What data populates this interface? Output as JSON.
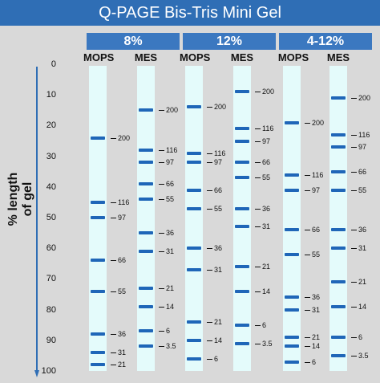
{
  "title": "Q-PAGE Bis-Tris Mini Gel",
  "y_axis": {
    "label": "% length of gel",
    "ticks": [
      "0",
      "10",
      "20",
      "30",
      "40",
      "50",
      "60",
      "70",
      "80",
      "90",
      "100"
    ]
  },
  "gels": [
    {
      "header": "8%",
      "buffers": [
        "MOPS",
        "MES"
      ]
    },
    {
      "header": "12%",
      "buffers": [
        "MOPS",
        "MES"
      ]
    },
    {
      "header": "4-12%",
      "buffers": [
        "MOPS",
        "MES"
      ]
    }
  ],
  "lanes": [
    {
      "gel": "8%",
      "buffer": "MOPS",
      "bands": [
        {
          "pos": 24,
          "mw": "200"
        },
        {
          "pos": 45,
          "mw": "116"
        },
        {
          "pos": 50,
          "mw": "97"
        },
        {
          "pos": 64,
          "mw": "66"
        },
        {
          "pos": 74,
          "mw": "55"
        },
        {
          "pos": 88,
          "mw": "36"
        },
        {
          "pos": 94,
          "mw": "31"
        },
        {
          "pos": 98,
          "mw": "21"
        }
      ]
    },
    {
      "gel": "8%",
      "buffer": "MES",
      "bands": [
        {
          "pos": 15,
          "mw": "200"
        },
        {
          "pos": 28,
          "mw": "116"
        },
        {
          "pos": 32,
          "mw": "97"
        },
        {
          "pos": 39,
          "mw": "66"
        },
        {
          "pos": 44,
          "mw": "55"
        },
        {
          "pos": 55,
          "mw": "36"
        },
        {
          "pos": 61,
          "mw": "31"
        },
        {
          "pos": 73,
          "mw": "21"
        },
        {
          "pos": 79,
          "mw": "14"
        },
        {
          "pos": 87,
          "mw": "6"
        },
        {
          "pos": 92,
          "mw": "3.5"
        }
      ]
    },
    {
      "gel": "12%",
      "buffer": "MOPS",
      "bands": [
        {
          "pos": 14,
          "mw": "200"
        },
        {
          "pos": 29,
          "mw": "116"
        },
        {
          "pos": 32,
          "mw": "97"
        },
        {
          "pos": 41,
          "mw": "66"
        },
        {
          "pos": 47,
          "mw": "55"
        },
        {
          "pos": 60,
          "mw": "36"
        },
        {
          "pos": 67,
          "mw": "31"
        },
        {
          "pos": 84,
          "mw": "21"
        },
        {
          "pos": 90,
          "mw": "14"
        },
        {
          "pos": 96,
          "mw": "6"
        }
      ]
    },
    {
      "gel": "12%",
      "buffer": "MES",
      "bands": [
        {
          "pos": 9,
          "mw": "200"
        },
        {
          "pos": 21,
          "mw": "116"
        },
        {
          "pos": 25,
          "mw": "97"
        },
        {
          "pos": 32,
          "mw": "66"
        },
        {
          "pos": 37,
          "mw": "55"
        },
        {
          "pos": 47,
          "mw": "36"
        },
        {
          "pos": 53,
          "mw": "31"
        },
        {
          "pos": 66,
          "mw": "21"
        },
        {
          "pos": 74,
          "mw": "14"
        },
        {
          "pos": 85,
          "mw": "6"
        },
        {
          "pos": 91,
          "mw": "3.5"
        }
      ]
    },
    {
      "gel": "4-12%",
      "buffer": "MOPS",
      "bands": [
        {
          "pos": 19,
          "mw": "200"
        },
        {
          "pos": 36,
          "mw": "116"
        },
        {
          "pos": 41,
          "mw": "97"
        },
        {
          "pos": 54,
          "mw": "66"
        },
        {
          "pos": 62,
          "mw": "55"
        },
        {
          "pos": 76,
          "mw": "36"
        },
        {
          "pos": 80,
          "mw": "31"
        },
        {
          "pos": 89,
          "mw": "21"
        },
        {
          "pos": 92,
          "mw": "14"
        },
        {
          "pos": 97,
          "mw": "6"
        }
      ]
    },
    {
      "gel": "4-12%",
      "buffer": "MES",
      "bands": [
        {
          "pos": 11,
          "mw": "200"
        },
        {
          "pos": 23,
          "mw": "116"
        },
        {
          "pos": 27,
          "mw": "97"
        },
        {
          "pos": 35,
          "mw": "66"
        },
        {
          "pos": 41,
          "mw": "55"
        },
        {
          "pos": 54,
          "mw": "36"
        },
        {
          "pos": 60,
          "mw": "31"
        },
        {
          "pos": 71,
          "mw": "21"
        },
        {
          "pos": 79,
          "mw": "14"
        },
        {
          "pos": 89,
          "mw": "6"
        },
        {
          "pos": 95,
          "mw": "3.5"
        }
      ]
    }
  ],
  "colors": {
    "title_bg": "#2f6eb5",
    "header_bg": "#3b78c0",
    "lane_bg": "#e4fbfb",
    "band": "#1f66b8",
    "page_bg": "#d9d9d9"
  }
}
